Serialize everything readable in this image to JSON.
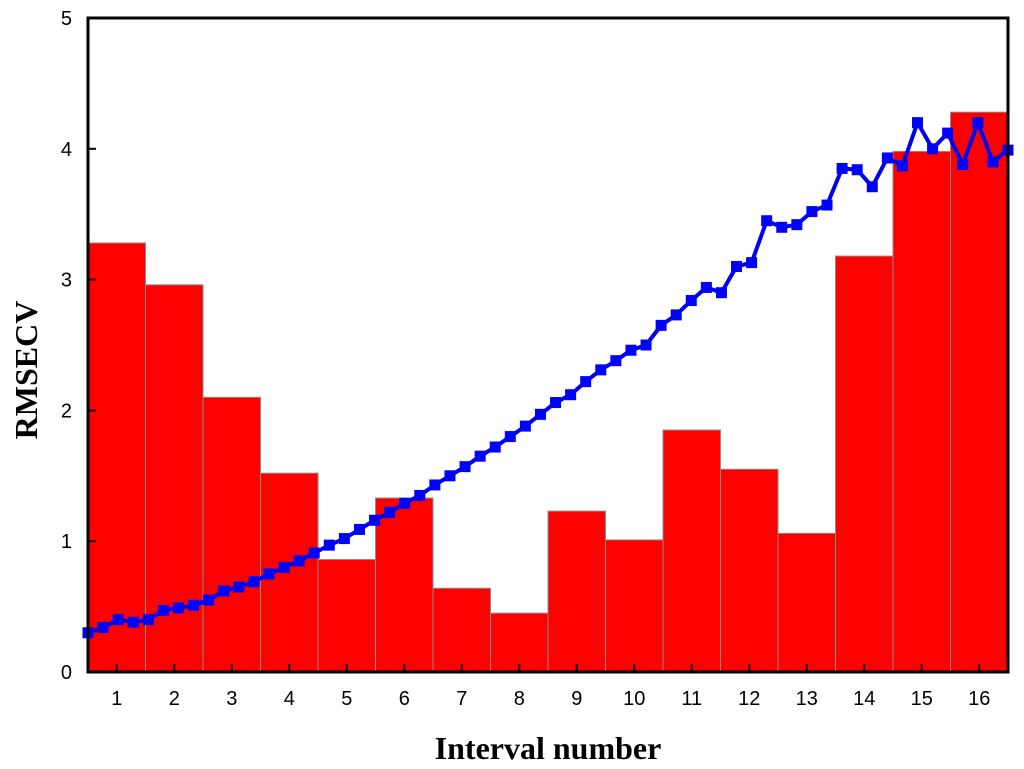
{
  "chart_data": {
    "type": "bar",
    "title": "",
    "xlabel": "Interval number",
    "ylabel": "RMSECV",
    "ylim": [
      0,
      5
    ],
    "yticks": [
      0,
      1,
      2,
      3,
      4,
      5
    ],
    "categories": [
      "1",
      "2",
      "3",
      "4",
      "5",
      "6",
      "7",
      "8",
      "9",
      "10",
      "11",
      "12",
      "13",
      "14",
      "15",
      "16"
    ],
    "values": [
      3.28,
      2.96,
      2.1,
      1.52,
      0.86,
      1.33,
      0.64,
      0.45,
      1.23,
      1.01,
      1.85,
      1.55,
      1.06,
      3.18,
      3.98,
      4.28
    ],
    "line_series": {
      "x_range": [
        0.5,
        16.5
      ],
      "y": [
        0.3,
        0.34,
        0.4,
        0.38,
        0.4,
        0.47,
        0.49,
        0.51,
        0.55,
        0.62,
        0.65,
        0.69,
        0.75,
        0.8,
        0.85,
        0.91,
        0.97,
        1.02,
        1.09,
        1.16,
        1.22,
        1.29,
        1.35,
        1.43,
        1.5,
        1.57,
        1.65,
        1.72,
        1.8,
        1.88,
        1.97,
        2.06,
        2.12,
        2.22,
        2.31,
        2.38,
        2.46,
        2.5,
        2.65,
        2.73,
        2.84,
        2.94,
        2.9,
        3.1,
        3.13,
        3.45,
        3.4,
        3.42,
        3.52,
        3.57,
        3.85,
        3.84,
        3.71,
        3.93,
        3.87,
        4.2,
        4.0,
        4.12,
        3.88,
        4.2,
        3.9,
        3.99
      ]
    },
    "grid": false,
    "legend": "none",
    "colors": {
      "bar_fill": "#ff0000",
      "bar_edge": "#8c8c8c",
      "line": "#0000ee",
      "marker": "#0000ff",
      "frame": "#000000"
    }
  }
}
